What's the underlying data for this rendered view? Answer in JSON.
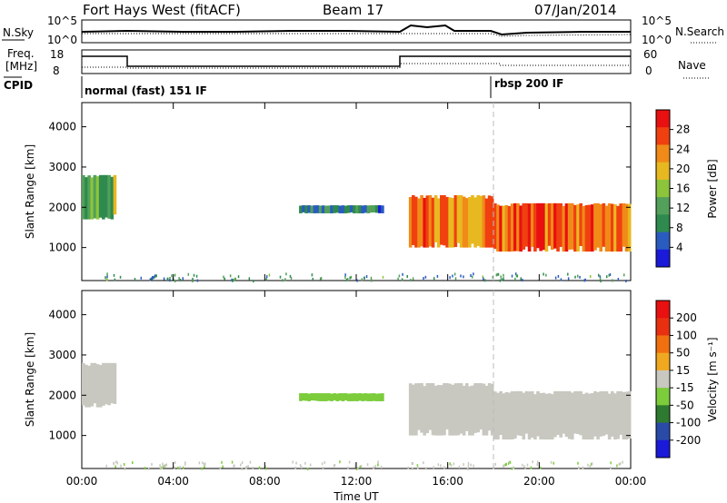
{
  "header": {
    "radar": "Fort Hays West (fitACF)",
    "beam": "Beam 17",
    "date": "07/Jan/2014"
  },
  "status": {
    "nsky_label": "N.Sky",
    "nsearch_label": "N.Search",
    "freq_label": "Freq.",
    "freq_unit": "[MHz]",
    "nave_label": "Nave",
    "cpid_label": "CPID",
    "noise_ticks": [
      "10^5",
      "10^0"
    ],
    "noise_right_ticks": [
      "10^5",
      "10^0"
    ],
    "freq_ticks": [
      "18",
      "8"
    ],
    "nave_ticks": [
      "60",
      "0"
    ],
    "cpid_1": "normal (fast) 151 IF",
    "cpid_2": "rbsp 200 IF"
  },
  "axes": {
    "ylabel_top": "Slant Range [km]",
    "ylabel_bottom": "Slant Range [km]",
    "yticks": [
      "4000",
      "3000",
      "2000",
      "1000"
    ],
    "xticks": [
      "00:00",
      "04:00",
      "08:00",
      "12:00",
      "16:00",
      "20:00",
      "00:00"
    ],
    "xlabel": "Time UT"
  },
  "colorbars": {
    "power_label": "Power [dB]",
    "power_ticks": [
      "28",
      "24",
      "20",
      "16",
      "12",
      "8",
      "4"
    ],
    "velocity_label": "Velocity [m s⁻¹]",
    "velocity_ticks": [
      "200",
      "100",
      "50",
      "15",
      "-15",
      "-50",
      "-100",
      "-200"
    ]
  },
  "colors": {
    "power_scale": [
      "#1a1ad8",
      "#2a5cc0",
      "#2e8a4e",
      "#52a05a",
      "#8cc43c",
      "#e8b820",
      "#f08a18",
      "#f04010",
      "#e81010"
    ],
    "velocity_scale": [
      "#1a1ad8",
      "#2a4aa8",
      "#2e7a30",
      "#7ccc3c",
      "#c8c8c0",
      "#f0a820",
      "#f07010",
      "#e83010",
      "#e81010"
    ],
    "ground_scatter": "#c8c8c0"
  },
  "chart_data": [
    {
      "type": "heatmap",
      "title": "Power",
      "xlabel": "Time UT",
      "ylabel": "Slant Range [km]",
      "xlim": [
        0,
        24
      ],
      "ylim": [
        180,
        4600
      ],
      "colorbar_label": "Power [dB]",
      "colorbar_range": [
        0,
        30
      ],
      "echo_regions": [
        {
          "t_start": 0.0,
          "t_end": 1.5,
          "range_low": 1700,
          "range_high": 2800,
          "power_db": 12
        },
        {
          "t_start": 9.5,
          "t_end": 13.2,
          "range_low": 1850,
          "range_high": 2050,
          "power_db": 8
        },
        {
          "t_start": 14.3,
          "t_end": 18.0,
          "range_low": 1000,
          "range_high": 2300,
          "power_db": 22
        },
        {
          "t_start": 18.0,
          "t_end": 24.0,
          "range_low": 900,
          "range_high": 2100,
          "power_db": 24
        }
      ]
    },
    {
      "type": "heatmap",
      "title": "Velocity",
      "xlabel": "Time UT",
      "ylabel": "Slant Range [km]",
      "xlim": [
        0,
        24
      ],
      "ylim": [
        180,
        4600
      ],
      "colorbar_label": "Velocity [m s⁻¹]",
      "colorbar_range": [
        -250,
        250
      ],
      "echo_regions": [
        {
          "t_start": 0.0,
          "t_end": 1.5,
          "range_low": 1700,
          "range_high": 2800,
          "velocity": 0
        },
        {
          "t_start": 9.5,
          "t_end": 13.2,
          "range_low": 1850,
          "range_high": 2050,
          "velocity": -50
        },
        {
          "t_start": 14.3,
          "t_end": 18.0,
          "range_low": 1000,
          "range_high": 2300,
          "velocity": 0
        },
        {
          "t_start": 18.0,
          "t_end": 24.0,
          "range_low": 900,
          "range_high": 2100,
          "velocity": 0
        }
      ]
    }
  ]
}
